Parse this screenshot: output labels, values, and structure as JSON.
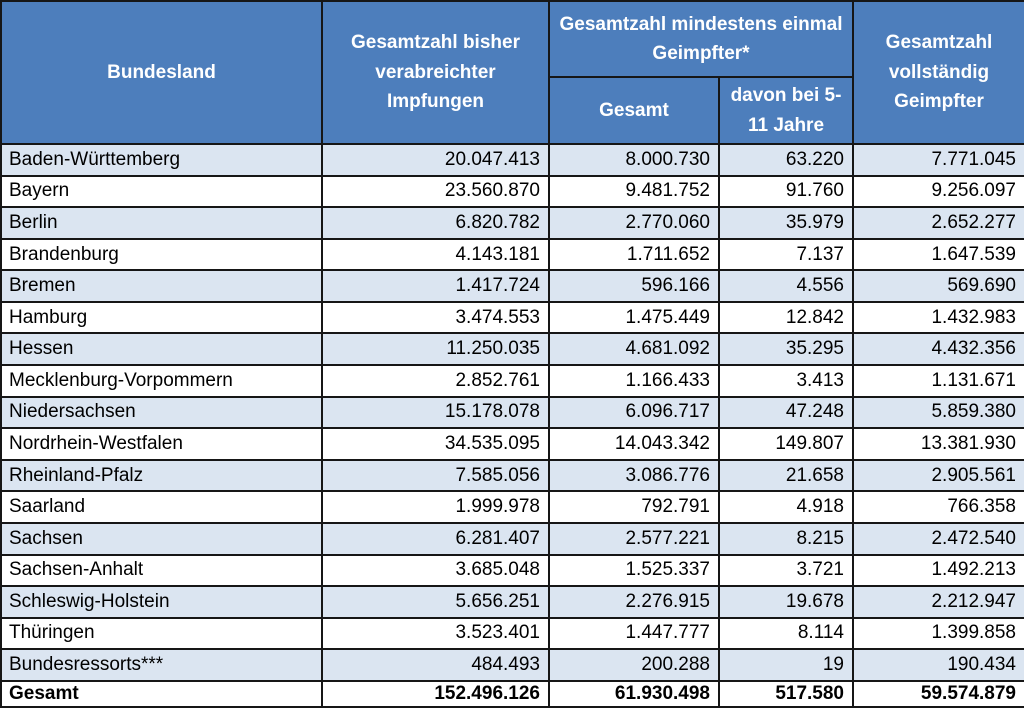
{
  "colors": {
    "header_bg": "#4D7EBC",
    "header_text": "#FFFFFF",
    "stripe_bg": "#DBE5F1",
    "row_bg": "#FFFFFF",
    "border": "#161616",
    "body_text": "#000000"
  },
  "chart_data": {
    "type": "table",
    "header": {
      "bundesland": "Bundesland",
      "total_doses": "Gesamtzahl bisher verabreichter Impfungen",
      "at_least_once_group": "Gesamtzahl  mindestens einmal Geimpfter*",
      "at_least_once_total": "Gesamt",
      "at_least_once_5_11": "davon bei 5-11 Jahre",
      "fully_vaccinated": "Gesamtzahl vollständig Geimpfter"
    },
    "columns": [
      "Bundesland",
      "Gesamtzahl bisher verabreichter Impfungen",
      "Gesamtzahl mindestens einmal Geimpfter* - Gesamt",
      "Gesamtzahl mindestens einmal Geimpfter* - davon bei 5-11 Jahre",
      "Gesamtzahl vollständig Geimpfter"
    ],
    "rows": [
      {
        "bundesland": "Baden-Württemberg",
        "gesamtzahl_impfungen": "20.047.413",
        "mind_einmal_gesamt": "8.000.730",
        "davon_5_11": "63.220",
        "vollstaendig": "7.771.045"
      },
      {
        "bundesland": "Bayern",
        "gesamtzahl_impfungen": "23.560.870",
        "mind_einmal_gesamt": "9.481.752",
        "davon_5_11": "91.760",
        "vollstaendig": "9.256.097"
      },
      {
        "bundesland": "Berlin",
        "gesamtzahl_impfungen": "6.820.782",
        "mind_einmal_gesamt": "2.770.060",
        "davon_5_11": "35.979",
        "vollstaendig": "2.652.277"
      },
      {
        "bundesland": "Brandenburg",
        "gesamtzahl_impfungen": "4.143.181",
        "mind_einmal_gesamt": "1.711.652",
        "davon_5_11": "7.137",
        "vollstaendig": "1.647.539"
      },
      {
        "bundesland": "Bremen",
        "gesamtzahl_impfungen": "1.417.724",
        "mind_einmal_gesamt": "596.166",
        "davon_5_11": "4.556",
        "vollstaendig": "569.690"
      },
      {
        "bundesland": "Hamburg",
        "gesamtzahl_impfungen": "3.474.553",
        "mind_einmal_gesamt": "1.475.449",
        "davon_5_11": "12.842",
        "vollstaendig": "1.432.983"
      },
      {
        "bundesland": "Hessen",
        "gesamtzahl_impfungen": "11.250.035",
        "mind_einmal_gesamt": "4.681.092",
        "davon_5_11": "35.295",
        "vollstaendig": "4.432.356"
      },
      {
        "bundesland": "Mecklenburg-Vorpommern",
        "gesamtzahl_impfungen": "2.852.761",
        "mind_einmal_gesamt": "1.166.433",
        "davon_5_11": "3.413",
        "vollstaendig": "1.131.671"
      },
      {
        "bundesland": "Niedersachsen",
        "gesamtzahl_impfungen": "15.178.078",
        "mind_einmal_gesamt": "6.096.717",
        "davon_5_11": "47.248",
        "vollstaendig": "5.859.380"
      },
      {
        "bundesland": "Nordrhein-Westfalen",
        "gesamtzahl_impfungen": "34.535.095",
        "mind_einmal_gesamt": "14.043.342",
        "davon_5_11": "149.807",
        "vollstaendig": "13.381.930"
      },
      {
        "bundesland": "Rheinland-Pfalz",
        "gesamtzahl_impfungen": "7.585.056",
        "mind_einmal_gesamt": "3.086.776",
        "davon_5_11": "21.658",
        "vollstaendig": "2.905.561"
      },
      {
        "bundesland": "Saarland",
        "gesamtzahl_impfungen": "1.999.978",
        "mind_einmal_gesamt": "792.791",
        "davon_5_11": "4.918",
        "vollstaendig": "766.358"
      },
      {
        "bundesland": "Sachsen",
        "gesamtzahl_impfungen": "6.281.407",
        "mind_einmal_gesamt": "2.577.221",
        "davon_5_11": "8.215",
        "vollstaendig": "2.472.540"
      },
      {
        "bundesland": "Sachsen-Anhalt",
        "gesamtzahl_impfungen": "3.685.048",
        "mind_einmal_gesamt": "1.525.337",
        "davon_5_11": "3.721",
        "vollstaendig": "1.492.213"
      },
      {
        "bundesland": "Schleswig-Holstein",
        "gesamtzahl_impfungen": "5.656.251",
        "mind_einmal_gesamt": "2.276.915",
        "davon_5_11": "19.678",
        "vollstaendig": "2.212.947"
      },
      {
        "bundesland": "Thüringen",
        "gesamtzahl_impfungen": "3.523.401",
        "mind_einmal_gesamt": "1.447.777",
        "davon_5_11": "8.114",
        "vollstaendig": "1.399.858"
      },
      {
        "bundesland": "Bundesressorts***",
        "gesamtzahl_impfungen": "484.493",
        "mind_einmal_gesamt": "200.288",
        "davon_5_11": "19",
        "vollstaendig": "190.434"
      }
    ],
    "total_row": {
      "bundesland": "Gesamt",
      "gesamtzahl_impfungen": "152.496.126",
      "mind_einmal_gesamt": "61.930.498",
      "davon_5_11": "517.580",
      "vollstaendig": "59.574.879"
    }
  }
}
